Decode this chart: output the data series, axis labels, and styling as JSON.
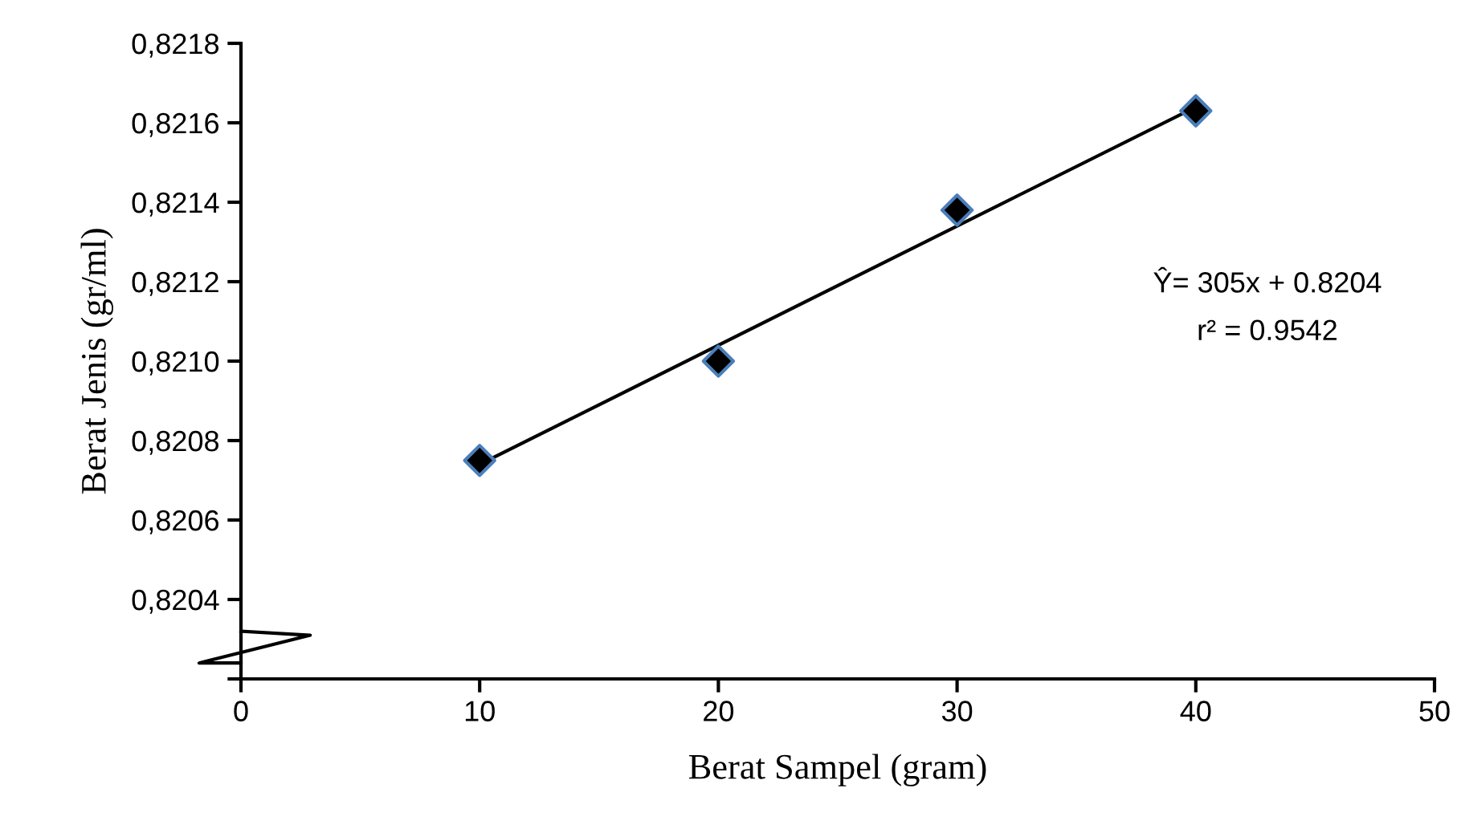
{
  "chart_data": {
    "type": "scatter",
    "xlabel": "Berat Sampel (gram)",
    "ylabel": "Berat Jenis (gr/ml)",
    "x": [
      10,
      20,
      30,
      40
    ],
    "series": [
      {
        "color": "#000000",
        "values": [
          0.82075,
          0.821,
          0.82138,
          0.82163
        ],
        "marker": "diamond"
      },
      {
        "type": "line",
        "color": "#000000",
        "x": [
          10,
          40
        ],
        "values": [
          0.82074,
          0.82164
        ],
        "marker": "none"
      }
    ],
    "xlim": [
      0,
      50
    ],
    "xticks": [
      0,
      10,
      20,
      30,
      40,
      50
    ],
    "ylim": [
      0.8202,
      0.8218
    ],
    "yticks": [
      {
        "value": 0.8202,
        "label": null
      },
      {
        "value": 0.8204,
        "label": "0,8204"
      },
      {
        "value": 0.8206,
        "label": "0,8206"
      },
      {
        "value": 0.8208,
        "label": "0,8208"
      },
      {
        "value": 0.821,
        "label": "0,8210"
      },
      {
        "value": 0.8212,
        "label": "0,8212"
      },
      {
        "value": 0.8214,
        "label": "0,8214"
      },
      {
        "value": 0.8216,
        "label": "0,8216"
      },
      {
        "value": 0.8218,
        "label": "0,8218"
      }
    ],
    "annotations": [
      "Ŷ= 305x + 0.8204",
      "r² = 0.9542"
    ],
    "grid": false,
    "legend": false
  }
}
